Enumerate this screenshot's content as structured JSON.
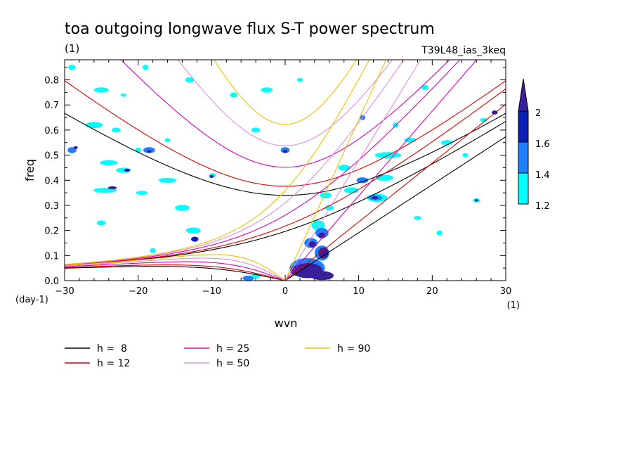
{
  "chart_data": {
    "type": "contour",
    "title": "toa outgoing longwave flux S-T power spectrum",
    "subtitle_left": "(1)",
    "subtitle_right": "T39L48_ias_3keq",
    "xlabel": "wvn",
    "ylabel": "freq",
    "x_unit": "(1)",
    "y_unit": "(day-1)",
    "xlim": [
      -30,
      30
    ],
    "ylim": [
      0,
      0.88
    ],
    "x_ticks": [
      -30,
      -20,
      -10,
      0,
      10,
      20,
      30
    ],
    "y_ticks": [
      0.0,
      0.1,
      0.2,
      0.3,
      0.4,
      0.5,
      0.6,
      0.7,
      0.8
    ],
    "y_tick_labels": [
      "0.0",
      "0.1",
      "0.2",
      "0.3",
      "0.4",
      "0.5",
      "0.6",
      "0.7",
      "0.8"
    ],
    "colorbar": {
      "levels": [
        1.2,
        1.4,
        1.6,
        2
      ],
      "labels": [
        "1.2",
        "1.4",
        "1.6",
        "2"
      ],
      "colors": [
        "#00ffff",
        "#1e7fff",
        "#0a1fb4",
        "#3a1f9a"
      ]
    },
    "dispersion_curves": [
      {
        "label": "h =  8",
        "h": 8,
        "color": "#000000"
      },
      {
        "label": "h = 12",
        "h": 12,
        "color": "#e00000"
      },
      {
        "label": "h = 25",
        "h": 25,
        "color": "#e000c0"
      },
      {
        "label": "h = 50",
        "h": 50,
        "color": "#e090e0"
      },
      {
        "label": "h = 90",
        "h": 90,
        "color": "#f0c000"
      }
    ]
  }
}
